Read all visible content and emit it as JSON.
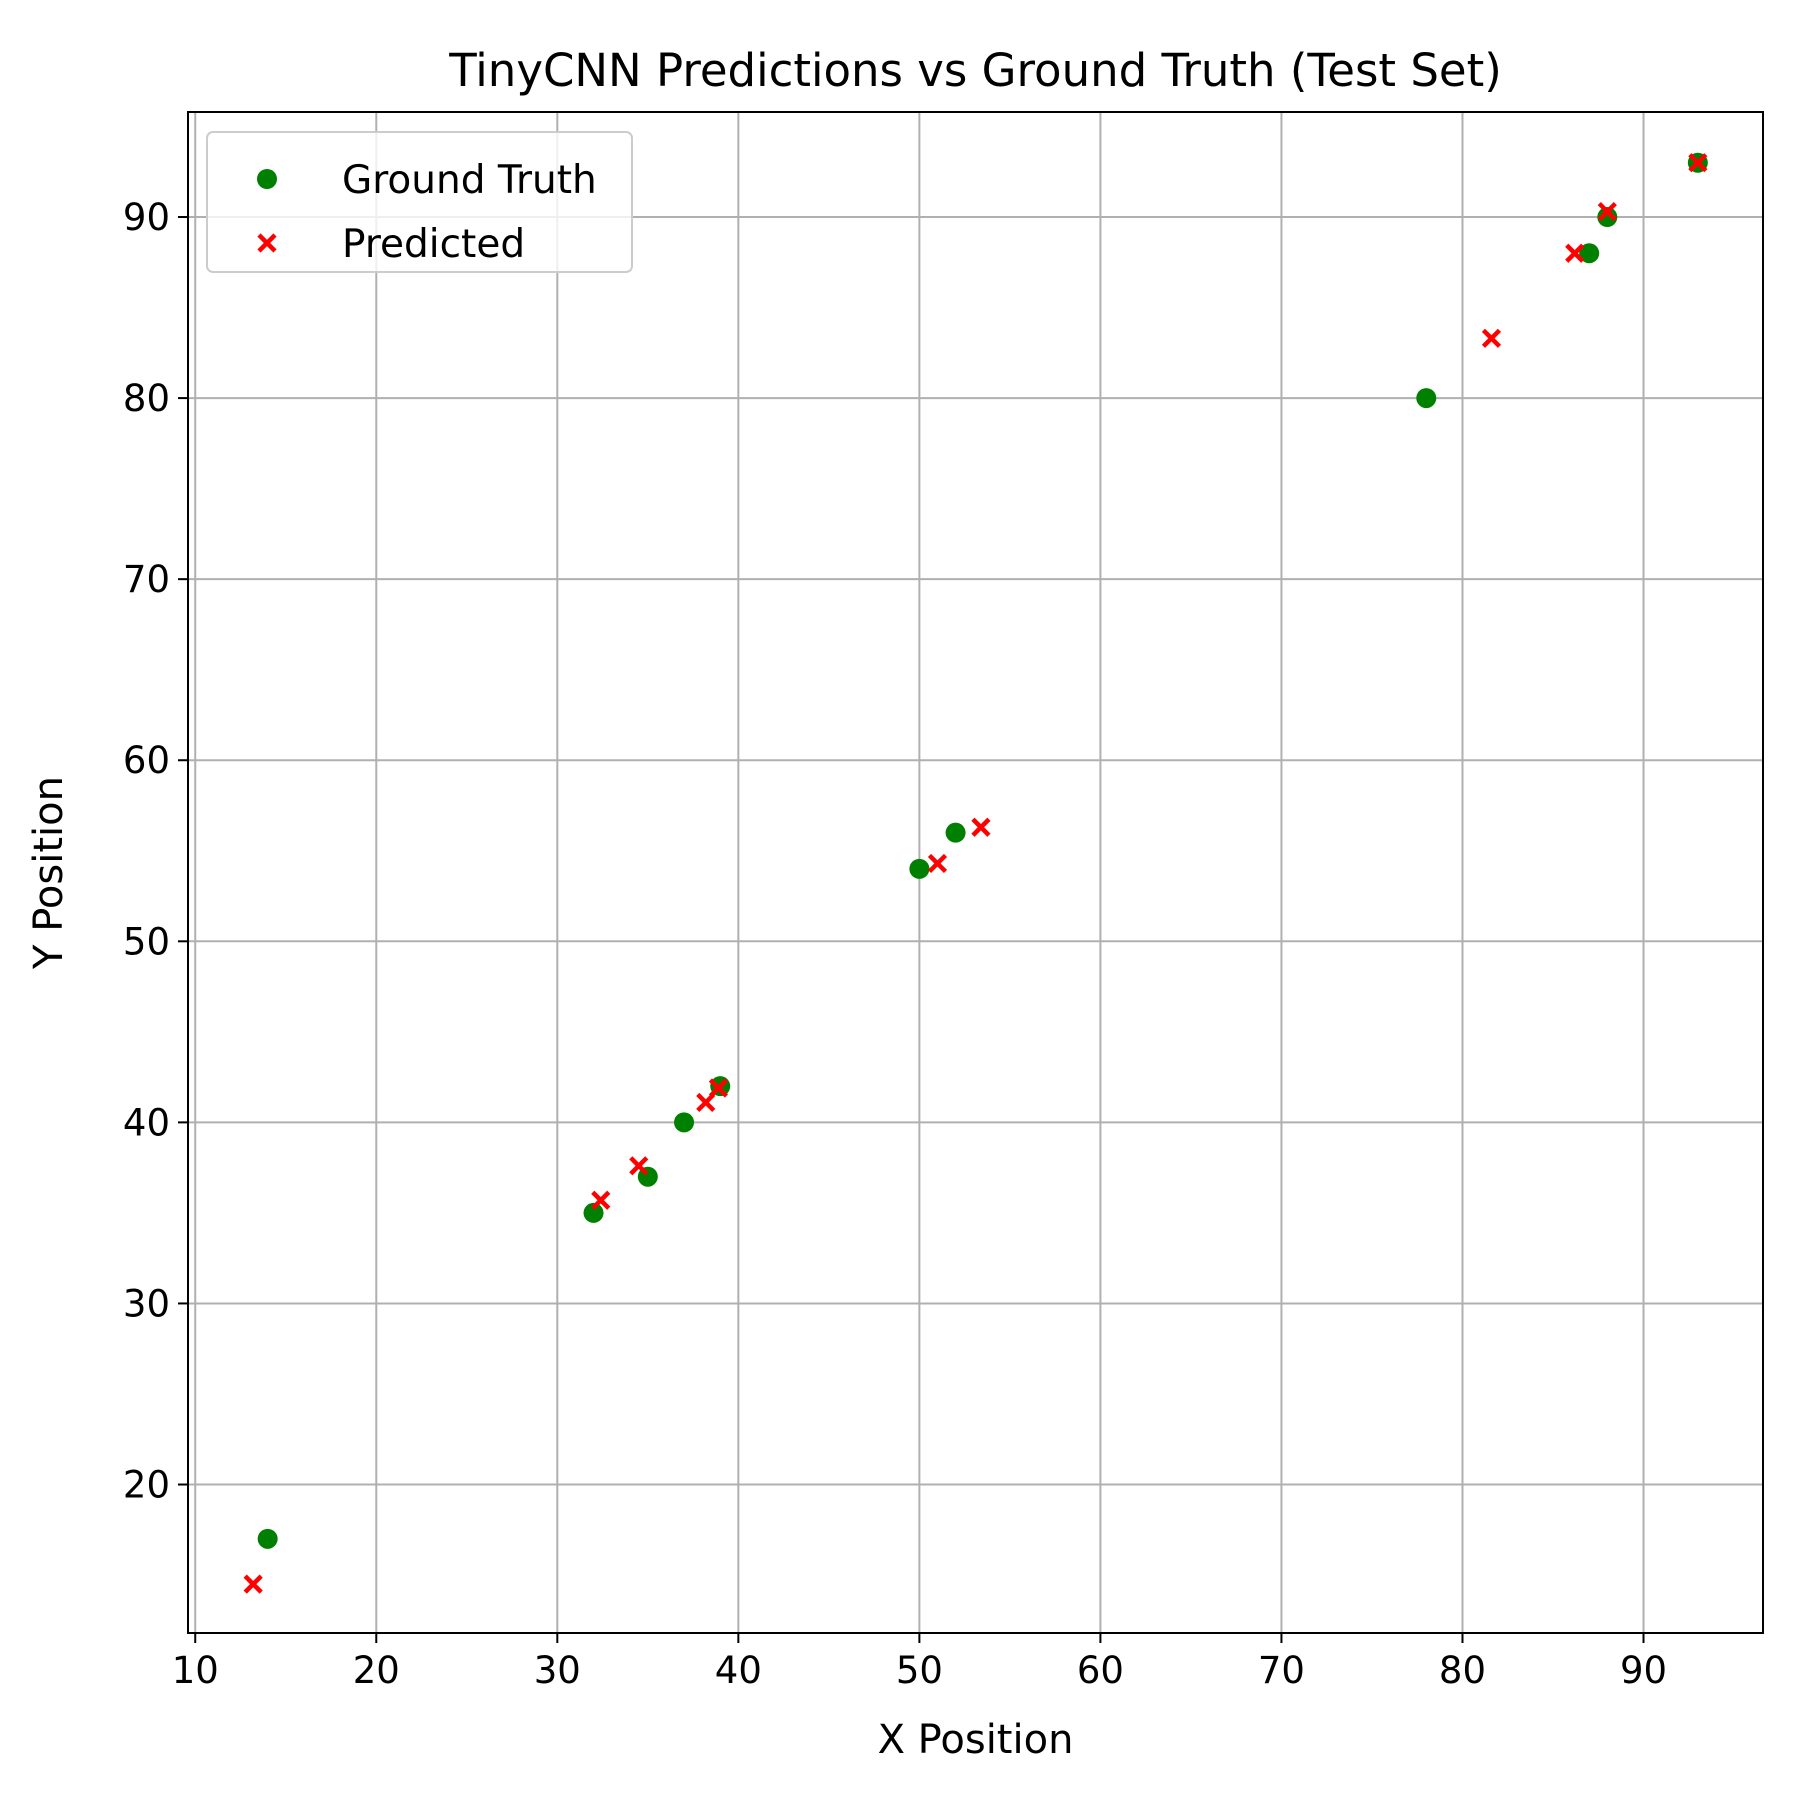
{
  "chart_data": {
    "type": "scatter",
    "title": "TinyCNN Predictions vs Ground Truth (Test Set)",
    "xlabel": "X Position",
    "ylabel": "Y Position",
    "xlim": [
      9.6,
      96.6
    ],
    "ylim": [
      11.8,
      95.8
    ],
    "x_ticks": [
      10,
      20,
      30,
      40,
      50,
      60,
      70,
      80,
      90
    ],
    "y_ticks": [
      20,
      30,
      40,
      50,
      60,
      70,
      80,
      90
    ],
    "grid": true,
    "legend_position": "upper-left",
    "series": [
      {
        "name": "Ground Truth",
        "marker": "circle",
        "color": "#008000",
        "points": [
          [
            14,
            17
          ],
          [
            32,
            35
          ],
          [
            35,
            37
          ],
          [
            37,
            40
          ],
          [
            39,
            42
          ],
          [
            50,
            54
          ],
          [
            52,
            56
          ],
          [
            78,
            80
          ],
          [
            87,
            88
          ],
          [
            88,
            90
          ],
          [
            93,
            93
          ]
        ]
      },
      {
        "name": "Predicted",
        "marker": "x",
        "color": "#ff0000",
        "points": [
          [
            13.2,
            14.5
          ],
          [
            32.4,
            35.7
          ],
          [
            34.5,
            37.6
          ],
          [
            38.2,
            41.1
          ],
          [
            38.9,
            41.9
          ],
          [
            51.0,
            54.3
          ],
          [
            53.4,
            56.3
          ],
          [
            81.6,
            83.3
          ],
          [
            86.2,
            88.0
          ],
          [
            88.0,
            90.3
          ],
          [
            93.0,
            93.0
          ]
        ]
      }
    ]
  }
}
